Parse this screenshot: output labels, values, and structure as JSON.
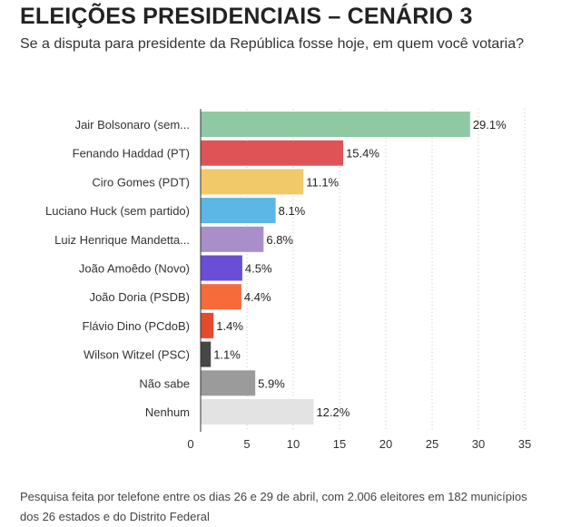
{
  "chart_data": {
    "type": "bar",
    "orientation": "horizontal",
    "title": "ELEIÇÕES PRESIDENCIAIS – CENÁRIO 3",
    "subtitle": "Se a disputa para presidente da República fosse hoje, em quem você votaria?",
    "categories": [
      "Jair Bolsonaro (sem...",
      "Fenando Haddad (PT)",
      "Ciro Gomes (PDT)",
      "Luciano Huck (sem partido)",
      "Luiz Henrique Mandetta...",
      "João Amoêdo (Novo)",
      "João Doria (PSDB)",
      "Flávio Dino (PCdoB)",
      "Wilson Witzel (PSC)",
      "Não sabe",
      "Nenhum"
    ],
    "values": [
      29.1,
      15.4,
      11.1,
      8.1,
      6.8,
      4.5,
      4.4,
      1.4,
      1.1,
      5.9,
      12.2
    ],
    "value_labels": [
      "29.1%",
      "15.4%",
      "11.1%",
      "8.1%",
      "6.8%",
      "4.5%",
      "4.4%",
      "1.4%",
      "1.1%",
      "5.9%",
      "12.2%"
    ],
    "colors": [
      "#8fc9a4",
      "#df5357",
      "#f2c968",
      "#5cb6e6",
      "#a98fca",
      "#6a4fd6",
      "#f76b3b",
      "#e44b2d",
      "#474747",
      "#9b9b9b",
      "#e3e3e3"
    ],
    "xlim": [
      0,
      35
    ],
    "xticks": [
      0,
      5,
      10,
      15,
      20,
      25,
      30,
      35
    ],
    "xtick_labels": [
      "0",
      "5",
      "10",
      "15",
      "20",
      "25",
      "30",
      "35"
    ],
    "xlabel": "",
    "ylabel": "",
    "grid": "vertical dotted",
    "footnote": "Pesquisa feita por telefone entre os dias 26 e 29 de abril, com 2.006 eleitores em 182 municípios dos 26 estados e do Distrito Federal"
  }
}
